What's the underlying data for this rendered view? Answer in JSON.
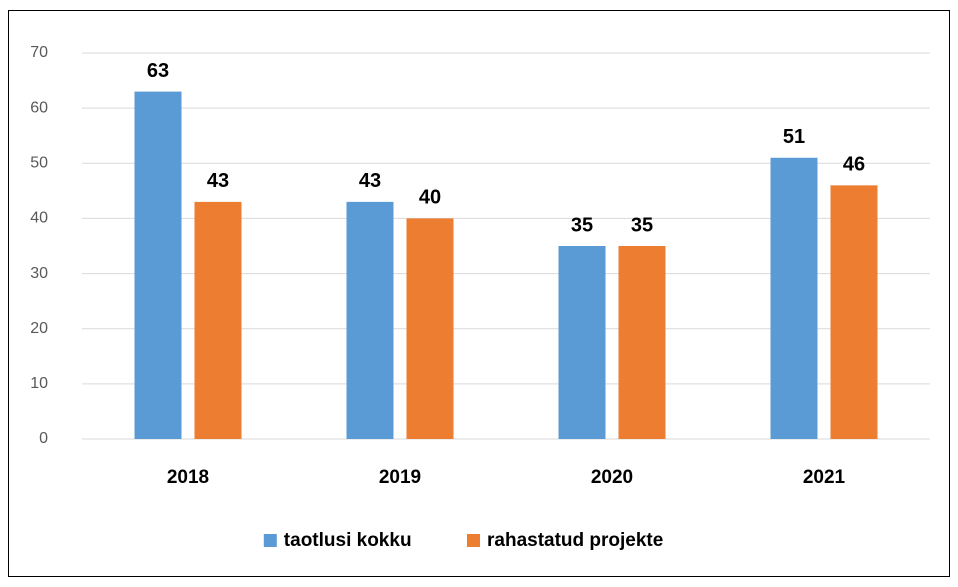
{
  "chart_data": {
    "type": "bar",
    "categories": [
      "2018",
      "2019",
      "2020",
      "2021"
    ],
    "series": [
      {
        "name": "taotlusi kokku",
        "color": "#5b9bd5",
        "values": [
          63,
          43,
          35,
          51
        ]
      },
      {
        "name": "rahastatud projekte",
        "color": "#ed7d31",
        "values": [
          43,
          40,
          35,
          46
        ]
      }
    ],
    "ylim": [
      0,
      70
    ],
    "yticks": [
      0,
      10,
      20,
      30,
      40,
      50,
      60,
      70
    ],
    "grid": true,
    "legend": "bottom"
  }
}
